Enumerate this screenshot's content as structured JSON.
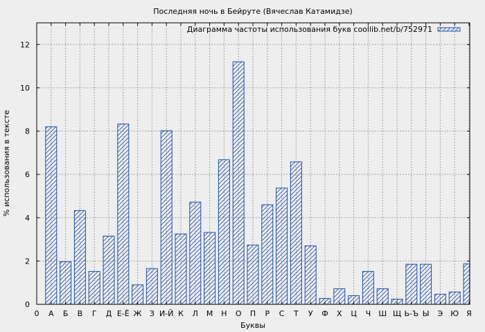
{
  "chart_data": {
    "type": "bar",
    "title": "Последняя ночь в Бейруте (Вячеслав Катамидзе)",
    "xlabel": "Буквы",
    "ylabel": "% использования в тексте",
    "legend": {
      "label": "Диаграмма частоты использования букв coollib.net/b/752971",
      "placement": "top-right"
    },
    "x_axis_start_label": "0",
    "categories": [
      "А",
      "Б",
      "В",
      "Г",
      "Д",
      "Е-Ё",
      "Ж",
      "З",
      "И-Й",
      "К",
      "Л",
      "М",
      "Н",
      "О",
      "П",
      "Р",
      "С",
      "Т",
      "У",
      "Ф",
      "Х",
      "Ц",
      "Ч",
      "Ш",
      "Щ",
      "Ь-Ъ",
      "Ы",
      "Э",
      "Ю",
      "Я"
    ],
    "values": [
      8.2,
      1.97,
      4.33,
      1.52,
      3.15,
      8.33,
      0.9,
      1.65,
      8.02,
      3.25,
      4.72,
      3.32,
      6.68,
      11.2,
      2.74,
      4.6,
      5.37,
      6.58,
      2.7,
      0.27,
      0.72,
      0.4,
      1.52,
      0.72,
      0.24,
      1.85,
      1.85,
      0.47,
      0.57,
      1.87
    ],
    "yticks": [
      0,
      2,
      4,
      6,
      8,
      10,
      12
    ],
    "ylim": [
      0,
      13
    ],
    "grid": true,
    "colors": {
      "bar_stroke": "#1f4fa8",
      "hatch": "#1f4fa8",
      "grid": "#a0a0a0",
      "plot_bg": "#eeeeee"
    }
  }
}
